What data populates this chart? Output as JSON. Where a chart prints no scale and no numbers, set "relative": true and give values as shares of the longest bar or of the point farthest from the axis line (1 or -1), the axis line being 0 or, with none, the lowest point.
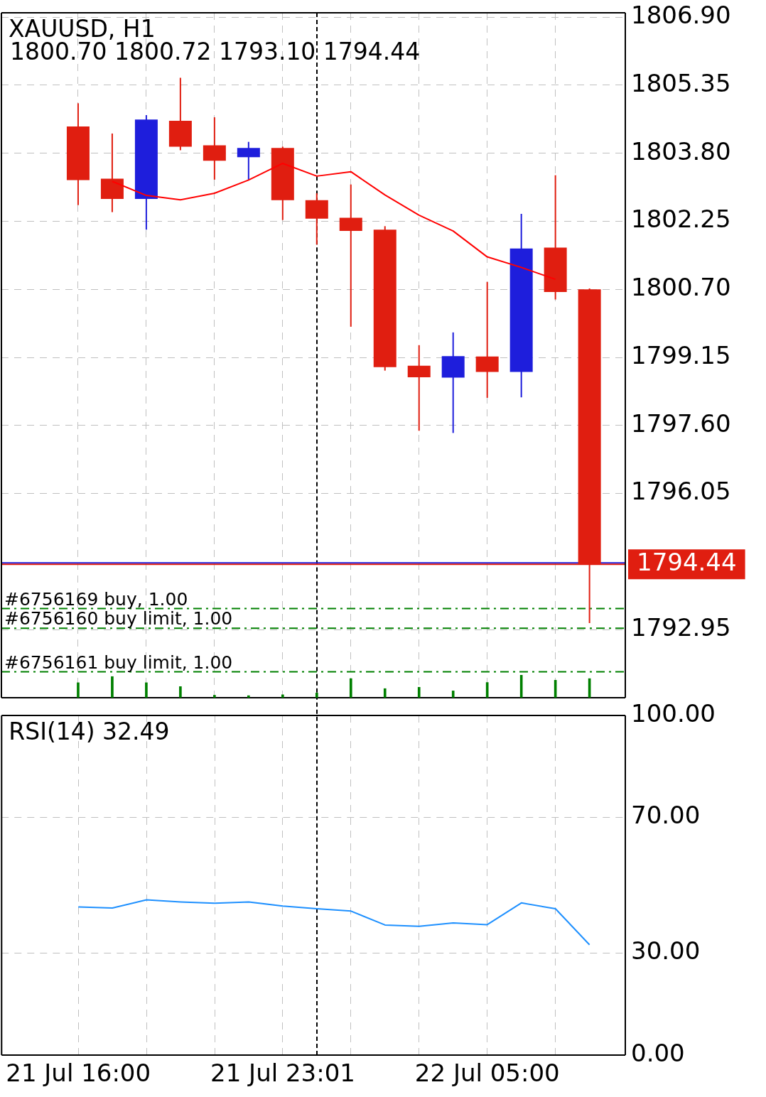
{
  "chart_data": [
    {
      "type": "candlestick",
      "title": "XAUUSD, H1",
      "subtitle": "1800.70 1800.72 1793.10 1794.44",
      "categories": [
        null,
        null,
        null,
        null,
        null,
        null,
        null,
        null,
        null,
        null,
        null,
        null,
        null,
        null,
        null,
        null
      ],
      "ohlc": [
        [
          1804.41,
          1804.94,
          1802.62,
          1803.19
        ],
        [
          1803.22,
          1804.25,
          1802.46,
          1802.76
        ],
        [
          1802.76,
          1804.67,
          1802.06,
          1804.57
        ],
        [
          1804.54,
          1805.52,
          1803.87,
          1803.95
        ],
        [
          1803.98,
          1804.62,
          1803.2,
          1803.63
        ],
        [
          1803.71,
          1804.06,
          1803.2,
          1803.92
        ],
        [
          1803.92,
          1803.95,
          1802.28,
          1802.73
        ],
        [
          1802.73,
          1802.89,
          1801.72,
          1802.31
        ],
        [
          1802.33,
          1803.09,
          1799.85,
          1802.03
        ],
        [
          1802.06,
          1802.14,
          1798.85,
          1798.93
        ],
        [
          1798.96,
          1799.43,
          1797.48,
          1798.7
        ],
        [
          1798.69,
          1799.72,
          1797.43,
          1799.18
        ],
        [
          1799.17,
          1800.87,
          1798.23,
          1798.82
        ],
        [
          1798.82,
          1802.42,
          1798.24,
          1801.63
        ],
        [
          1801.65,
          1803.3,
          1800.47,
          1800.64
        ],
        [
          1800.7,
          1800.72,
          1793.1,
          1794.44
        ]
      ],
      "colors": [
        "#e01e10",
        "#e01e10",
        "#1e1edc",
        "#e01e10",
        "#e01e10",
        "#1e1edc",
        "#e01e10",
        "#e01e10",
        "#e01e10",
        "#e01e10",
        "#e01e10",
        "#1e1edc",
        "#e01e10",
        "#1e1edc",
        "#e01e10",
        "#e01e10"
      ],
      "series": [
        {
          "type": "line",
          "color": "#ff0000",
          "values": [
            null,
            1803.16,
            1802.84,
            1802.74,
            1802.89,
            1803.19,
            1803.57,
            1803.28,
            1803.38,
            1802.85,
            1802.39,
            1802.03,
            1801.44,
            1801.2,
            1800.93,
            null
          ]
        }
      ],
      "ylim": [
        1791.4,
        1807.0
      ],
      "yticks": [
        {
          "value": 1806.9,
          "label": "1806.90"
        },
        {
          "value": 1805.35,
          "label": "1805.35"
        },
        {
          "value": 1803.8,
          "label": "1803.80"
        },
        {
          "value": 1802.25,
          "label": "1802.25"
        },
        {
          "value": 1800.7,
          "label": "1800.70"
        },
        {
          "value": 1799.15,
          "label": "1799.15"
        },
        {
          "value": 1797.6,
          "label": "1797.60"
        },
        {
          "value": 1796.05,
          "label": "1796.05"
        },
        {
          "value": 1792.95,
          "label": "1792.95"
        }
      ],
      "grid": true,
      "tick_labels": "y",
      "ref_lines": [
        {
          "axis": "y",
          "value": 1794.47,
          "color": "#1e1edc",
          "line_style": "solid"
        },
        {
          "axis": "y",
          "value": 1794.44,
          "label": "1794.44",
          "color": "#e01e10",
          "line_style": "solid"
        },
        {
          "axis": "y",
          "value": 1793.43,
          "label": "#6756169 buy, 1.00",
          "color": "#008000",
          "line_style": "dashed"
        },
        {
          "axis": "y",
          "value": 1792.98,
          "label": "#6756160 buy limit, 1.00",
          "color": "#008000",
          "line_style": "dashed"
        },
        {
          "axis": "y",
          "value": 1791.99,
          "label": "#6756161 buy limit, 1.00",
          "color": "#008000",
          "line_style": "dashed"
        }
      ]
    },
    {
      "type": "bar",
      "relative": true,
      "tick_labels": false,
      "color": "#008000",
      "categories": [
        null,
        null,
        null,
        null,
        null,
        null,
        null,
        null,
        null,
        null,
        null,
        null,
        null,
        null,
        null,
        null
      ],
      "values": [
        0.66,
        0.93,
        0.66,
        0.49,
        0.11,
        0.09,
        0.13,
        0.21,
        0.84,
        0.4,
        0.46,
        0.3,
        0.67,
        1,
        0.77,
        0.84
      ]
    },
    {
      "type": "line",
      "title": "RSI(14) 32.49",
      "color": "#1e90ff",
      "categories": [
        "21 Jul 16:00",
        null,
        null,
        null,
        null,
        null,
        "21 Jul 23:01",
        null,
        null,
        null,
        null,
        null,
        "22 Jul 05:00",
        null,
        null,
        null
      ],
      "values": [
        43.6,
        43.3,
        45.7,
        45.1,
        44.7,
        45.1,
        43.9,
        43.1,
        42.4,
        38.3,
        37.9,
        38.9,
        38.4,
        44.8,
        43.1,
        32.49
      ],
      "ylim": [
        0,
        100
      ],
      "yticks": [
        {
          "value": 100,
          "label": "100.00"
        },
        {
          "value": 70,
          "label": "70.00"
        },
        {
          "value": 30,
          "label": "30.00"
        },
        {
          "value": 0,
          "label": "0.00"
        }
      ],
      "grid": true
    }
  ]
}
